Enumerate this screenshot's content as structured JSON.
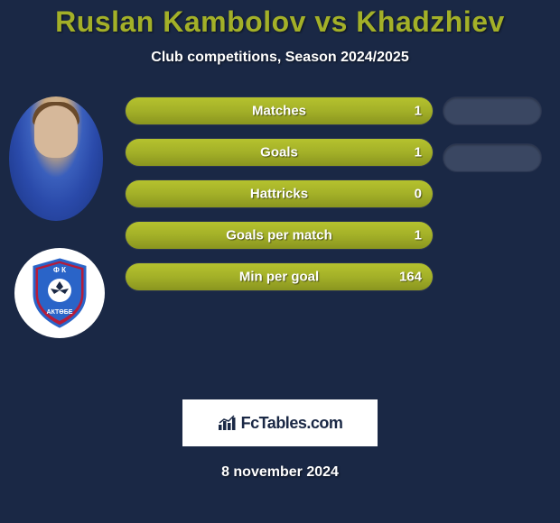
{
  "header": {
    "title": "Ruslan Kambolov vs Khadzhiev",
    "subtitle": "Club competitions, Season 2024/2025"
  },
  "stats": [
    {
      "label": "Matches",
      "value": "1",
      "fill_pct": 100
    },
    {
      "label": "Goals",
      "value": "1",
      "fill_pct": 100
    },
    {
      "label": "Hattricks",
      "value": "0",
      "fill_pct": 100
    },
    {
      "label": "Goals per match",
      "value": "1",
      "fill_pct": 100
    },
    {
      "label": "Min per goal",
      "value": "164",
      "fill_pct": 100
    }
  ],
  "colors": {
    "background": "#1a2845",
    "accent": "#a3b028",
    "bar_track": "#3a4762",
    "text": "#ffffff",
    "white": "#ffffff"
  },
  "logo": {
    "text_top": "Ф К",
    "text_bottom": "АКТӨБЕ",
    "primary": "#b51c3a",
    "secondary": "#2a64c8",
    "ball": "#ffffff"
  },
  "right_pills": 2,
  "site": {
    "label": "FcTables.com"
  },
  "date": "8 november 2024"
}
